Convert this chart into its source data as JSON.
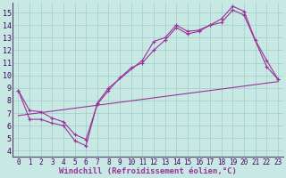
{
  "xlabel": "Windchill (Refroidissement éolien,°C)",
  "bg_color": "#c8e8e4",
  "grid_color": "#a0cccc",
  "line_color": "#993399",
  "axis_bar_color": "#554466",
  "x_ticks": [
    0,
    1,
    2,
    3,
    4,
    5,
    6,
    7,
    8,
    9,
    10,
    11,
    12,
    13,
    14,
    15,
    16,
    17,
    18,
    19,
    20,
    21,
    22,
    23
  ],
  "y_ticks": [
    4,
    5,
    6,
    7,
    8,
    9,
    10,
    11,
    12,
    13,
    14,
    15
  ],
  "ylim": [
    3.5,
    15.8
  ],
  "xlim": [
    -0.5,
    23.5
  ],
  "line1_x": [
    0,
    1,
    2,
    3,
    4,
    5,
    6,
    7,
    8,
    11,
    12,
    13,
    14,
    15,
    16,
    17,
    18,
    19,
    20,
    22,
    23
  ],
  "line1_y": [
    8.8,
    6.5,
    6.5,
    6.2,
    6.0,
    4.8,
    4.4,
    7.8,
    9.0,
    11.2,
    12.7,
    13.0,
    14.0,
    13.5,
    13.6,
    14.0,
    14.2,
    15.2,
    14.8,
    10.7,
    9.7
  ],
  "line2_x": [
    0,
    23
  ],
  "line2_y": [
    6.8,
    9.5
  ],
  "line3_x": [
    0,
    1,
    2,
    3,
    4,
    5,
    6,
    7,
    8,
    9,
    10,
    11,
    12,
    13,
    14,
    15,
    16,
    17,
    18,
    19,
    20,
    21,
    22,
    23
  ],
  "line3_y": [
    8.8,
    7.2,
    7.1,
    6.6,
    6.3,
    5.3,
    4.9,
    7.7,
    8.8,
    9.8,
    10.6,
    11.0,
    12.0,
    12.8,
    13.8,
    13.3,
    13.5,
    14.0,
    14.5,
    15.5,
    15.1,
    12.8,
    11.2,
    9.7
  ],
  "tick_fontsize": 5.5,
  "xlabel_fontsize": 6.5
}
